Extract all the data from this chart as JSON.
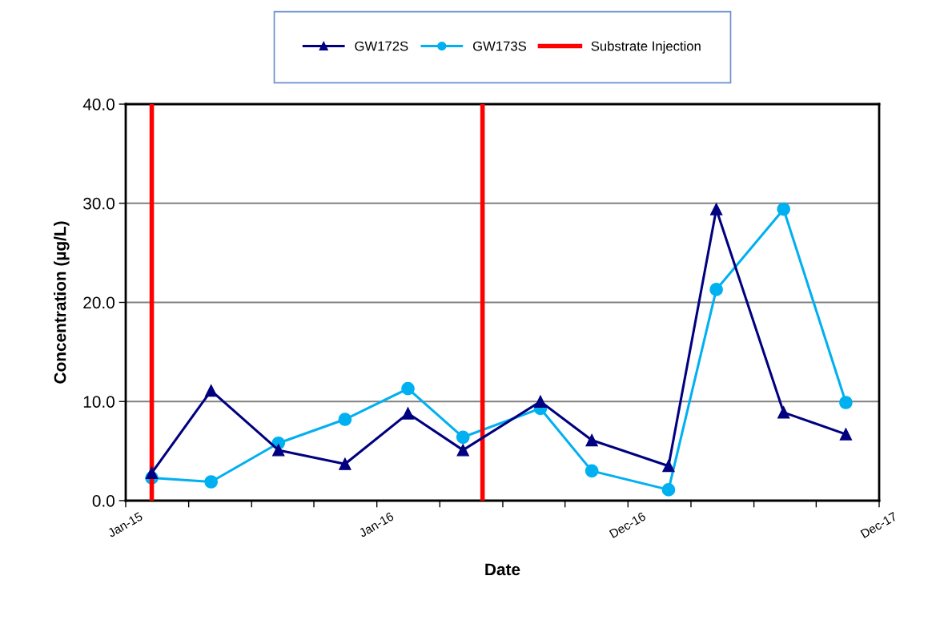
{
  "chart_data": {
    "type": "line",
    "xlabel": "Date",
    "ylabel": "Concentration (µg/L)",
    "x": [
      "2015-03-08",
      "2015-05-29",
      "2015-08-30",
      "2015-11-30",
      "2016-02-25",
      "2016-05-11",
      "2016-08-26",
      "2016-11-05",
      "2017-02-19",
      "2017-04-26",
      "2017-07-28",
      "2017-10-22"
    ],
    "series": [
      {
        "name": "GW172S",
        "color": "#000080",
        "marker": "triangle",
        "values": [
          2.8,
          11.1,
          5.1,
          3.7,
          8.8,
          5.1,
          10.0,
          6.1,
          3.5,
          29.4,
          8.9,
          6.7
        ]
      },
      {
        "name": "GW173S",
        "color": "#00b0f0",
        "marker": "circle",
        "values": [
          2.3,
          1.9,
          5.8,
          8.2,
          11.3,
          6.4,
          9.3,
          3.0,
          1.1,
          21.3,
          29.4,
          9.9
        ]
      }
    ],
    "ref_lines": [
      {
        "axis": "x",
        "value": "2015-03-08",
        "label": "Substrate Injection",
        "color": "#ff0000"
      },
      {
        "axis": "x",
        "value": "2016-06-07",
        "label": null,
        "color": "#ff0000"
      }
    ],
    "xlim": [
      "2015-01-31",
      "2017-12-07"
    ],
    "xticks": [
      {
        "value": "2015-01-31",
        "label": "Jan-15"
      },
      {
        "value": "2015-04-28",
        "label": null
      },
      {
        "value": "2015-07-24",
        "label": null
      },
      {
        "value": "2015-10-18",
        "label": null
      },
      {
        "value": "2016-01-13",
        "label": "Jan-16"
      },
      {
        "value": "2016-04-09",
        "label": null
      },
      {
        "value": "2016-07-05",
        "label": null
      },
      {
        "value": "2016-09-29",
        "label": null
      },
      {
        "value": "2016-12-25",
        "label": "Dec-16"
      },
      {
        "value": "2017-03-22",
        "label": null
      },
      {
        "value": "2017-06-17",
        "label": null
      },
      {
        "value": "2017-09-11",
        "label": null
      },
      {
        "value": "2017-12-07",
        "label": "Dec-17"
      }
    ],
    "ylim": [
      0,
      40
    ],
    "yticks": [
      {
        "value": 0,
        "label": "0.0"
      },
      {
        "value": 10,
        "label": "10.0"
      },
      {
        "value": 20,
        "label": "20.0"
      },
      {
        "value": 30,
        "label": "30.0"
      },
      {
        "value": 40,
        "label": "40.0"
      }
    ],
    "grid": "y",
    "legend": "top"
  }
}
